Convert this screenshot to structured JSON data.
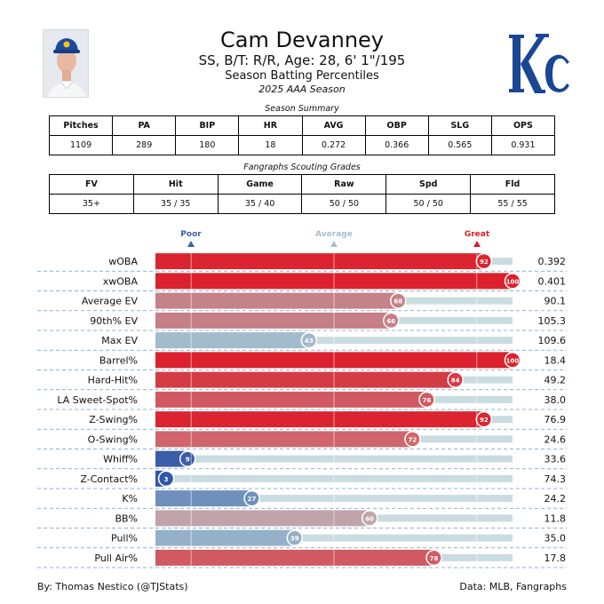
{
  "header": {
    "name": "Cam Devanney",
    "subtitle": "SS, B/T: R/R, Age: 28, 6' 1\"/195",
    "chart_title": "Season Batting Percentiles",
    "season": "2025 AAA Season"
  },
  "summary": {
    "caption": "Season Summary",
    "columns": [
      "Pitches",
      "PA",
      "BIP",
      "HR",
      "AVG",
      "OBP",
      "SLG",
      "OPS"
    ],
    "values": [
      "1109",
      "289",
      "180",
      "18",
      "0.272",
      "0.366",
      "0.565",
      "0.931"
    ]
  },
  "scouting": {
    "caption": "Fangraphs Scouting Grades",
    "columns": [
      "FV",
      "Hit",
      "Game",
      "Raw",
      "Spd",
      "Fld"
    ],
    "values": [
      "35+",
      "35 / 35",
      "35 / 40",
      "50 / 50",
      "50 / 50",
      "55 / 55"
    ]
  },
  "scale": {
    "poor": "Poor",
    "average": "Average",
    "great": "Great",
    "colors": {
      "poor": "#3b5fa8",
      "average": "#a8bfcc",
      "great": "#d7202c"
    }
  },
  "chart_data": {
    "type": "bar",
    "orientation": "horizontal",
    "title": "Season Batting Percentiles",
    "xlim": [
      0,
      100
    ],
    "categories": [
      "wOBA",
      "xwOBA",
      "Average EV",
      "90th% EV",
      "Max EV",
      "Barrel%",
      "Hard-Hit%",
      "LA Sweet-Spot%",
      "Z-Swing%",
      "O-Swing%",
      "Whiff%",
      "Z-Contact%",
      "K%",
      "BB%",
      "Pull%",
      "Pull Air%"
    ],
    "percentiles": [
      92,
      100,
      68,
      66,
      43,
      100,
      84,
      76,
      92,
      72,
      9,
      3,
      27,
      60,
      39,
      78
    ],
    "stat_values": [
      "0.392",
      "0.401",
      "90.1",
      "105.3",
      "109.6",
      "18.4",
      "49.2",
      "38.0",
      "76.9",
      "24.6",
      "33.6",
      "74.3",
      "24.2",
      "11.8",
      "35.0",
      "17.8"
    ],
    "bar_colors": [
      "#dc2430",
      "#da212d",
      "#c58288",
      "#c67f86",
      "#a2bccb",
      "#da212d",
      "#d43c45",
      "#d15a62",
      "#dc2430",
      "#d0666c",
      "#3a5ea7",
      "#3158a6",
      "#6f8fbd",
      "#bfa4a9",
      "#94b1c8",
      "#d15a62"
    ],
    "track_color": "#c9dcdf"
  },
  "footer": {
    "left": "By: Thomas Nestico (@TJStats)",
    "right": "Data: MLB, Fangraphs"
  }
}
